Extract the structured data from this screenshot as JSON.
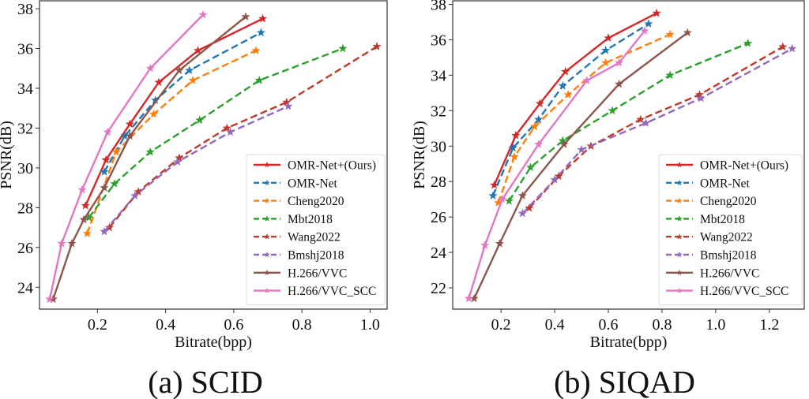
{
  "chart_data": [
    {
      "type": "line",
      "caption": "(a) SCID",
      "xlabel": "Bitrate(bpp)",
      "ylabel": "PSNR(dB)",
      "xlim": [
        0.03,
        1.05
      ],
      "ylim": [
        22.9,
        38.4
      ],
      "xticks": [
        0.2,
        0.4,
        0.6,
        0.8,
        1.0
      ],
      "xtick_labels": [
        "0.2",
        "0.4",
        "0.6",
        "0.8",
        "1.0"
      ],
      "yticks": [
        24,
        26,
        28,
        30,
        32,
        34,
        36,
        38
      ],
      "ytick_labels": [
        "24",
        "26",
        "28",
        "30",
        "32",
        "34",
        "36",
        "38"
      ],
      "grid": false,
      "legend_position": "lower-right",
      "series": [
        {
          "name": "OMR-Net+(Ours)",
          "color": "#d62728",
          "dashed": false,
          "x": [
            0.165,
            0.225,
            0.295,
            0.38,
            0.495,
            0.685
          ],
          "y": [
            28.1,
            30.4,
            32.2,
            34.3,
            35.9,
            37.5
          ]
        },
        {
          "name": "OMR-Net",
          "color": "#1f77b4",
          "dashed": true,
          "x": [
            0.22,
            0.28,
            0.37,
            0.47,
            0.68
          ],
          "y": [
            29.8,
            31.6,
            33.4,
            34.9,
            36.8
          ]
        },
        {
          "name": "Cheng2020",
          "color": "#ff7f0e",
          "dashed": true,
          "x": [
            0.17,
            0.255,
            0.365,
            0.48,
            0.665
          ],
          "y": [
            26.7,
            30.8,
            32.7,
            34.4,
            35.9
          ]
        },
        {
          "name": "Mbt2018",
          "color": "#2ca02c",
          "dashed": true,
          "x": [
            0.175,
            0.25,
            0.355,
            0.5,
            0.675,
            0.92
          ],
          "y": [
            27.5,
            29.2,
            30.8,
            32.4,
            34.4,
            36.0
          ]
        },
        {
          "name": "Wang2022",
          "color": "#c0392b",
          "dashed": true,
          "x": [
            0.235,
            0.32,
            0.44,
            0.58,
            0.755,
            1.02
          ],
          "y": [
            27.0,
            28.8,
            30.5,
            32.0,
            33.3,
            36.1
          ]
        },
        {
          "name": "Bmshj2018",
          "color": "#9467bd",
          "dashed": true,
          "x": [
            0.22,
            0.31,
            0.435,
            0.59,
            0.76
          ],
          "y": [
            26.8,
            28.6,
            30.3,
            31.8,
            33.1
          ]
        },
        {
          "name": "H.266/VVC",
          "color": "#8c564b",
          "dashed": false,
          "x": [
            0.07,
            0.125,
            0.16,
            0.22,
            0.295,
            0.44,
            0.635
          ],
          "y": [
            23.4,
            26.2,
            27.4,
            29.0,
            31.6,
            34.9,
            37.6
          ]
        },
        {
          "name": "H.266/VVC_SCC",
          "color": "#e377c2",
          "dashed": false,
          "x": [
            0.06,
            0.095,
            0.155,
            0.23,
            0.355,
            0.51
          ],
          "y": [
            23.4,
            26.2,
            28.9,
            31.8,
            35.0,
            37.7
          ]
        }
      ]
    },
    {
      "type": "line",
      "caption": "(b) SIQAD",
      "xlabel": "Bitrate(bpp)",
      "ylabel": "PSNR(dB)",
      "xlim": [
        0.02,
        1.33
      ],
      "ylim": [
        20.8,
        38.2
      ],
      "xticks": [
        0.2,
        0.4,
        0.6,
        0.8,
        1.0,
        1.2
      ],
      "xtick_labels": [
        "0.2",
        "0.4",
        "0.6",
        "0.8",
        "1.0",
        "1.2"
      ],
      "yticks": [
        22,
        24,
        26,
        28,
        30,
        32,
        34,
        36,
        38
      ],
      "ytick_labels": [
        "22",
        "24",
        "26",
        "28",
        "30",
        "32",
        "34",
        "36",
        "38"
      ],
      "grid": false,
      "legend_position": "lower-right",
      "series": [
        {
          "name": "OMR-Net+(Ours)",
          "color": "#d62728",
          "dashed": false,
          "x": [
            0.175,
            0.255,
            0.345,
            0.44,
            0.6,
            0.78
          ],
          "y": [
            27.8,
            30.6,
            32.4,
            34.2,
            36.1,
            37.5
          ]
        },
        {
          "name": "OMR-Net",
          "color": "#1f77b4",
          "dashed": true,
          "x": [
            0.17,
            0.245,
            0.34,
            0.43,
            0.59,
            0.75
          ],
          "y": [
            27.2,
            29.9,
            31.5,
            33.4,
            35.4,
            36.9
          ]
        },
        {
          "name": "Cheng2020",
          "color": "#ff7f0e",
          "dashed": true,
          "x": [
            0.19,
            0.25,
            0.325,
            0.45,
            0.59,
            0.83
          ],
          "y": [
            26.8,
            29.4,
            31.1,
            32.9,
            34.7,
            36.3
          ]
        },
        {
          "name": "Mbt2018",
          "color": "#2ca02c",
          "dashed": true,
          "x": [
            0.23,
            0.31,
            0.43,
            0.615,
            0.83,
            1.12
          ],
          "y": [
            26.9,
            28.8,
            30.3,
            32.0,
            34.0,
            35.8
          ]
        },
        {
          "name": "Wang2022",
          "color": "#c0392b",
          "dashed": true,
          "x": [
            0.305,
            0.415,
            0.535,
            0.72,
            0.94,
            1.25
          ],
          "y": [
            26.5,
            28.3,
            30.0,
            31.5,
            32.9,
            35.6
          ]
        },
        {
          "name": "Bmshj2018",
          "color": "#9467bd",
          "dashed": true,
          "x": [
            0.28,
            0.4,
            0.5,
            0.74,
            0.945,
            1.285
          ],
          "y": [
            26.2,
            28.1,
            29.8,
            31.3,
            32.7,
            35.5
          ]
        },
        {
          "name": "H.266/VVC",
          "color": "#8c564b",
          "dashed": false,
          "x": [
            0.1,
            0.195,
            0.28,
            0.435,
            0.64,
            0.895
          ],
          "y": [
            21.4,
            24.5,
            27.2,
            30.1,
            33.5,
            36.4
          ]
        },
        {
          "name": "H.266/VVC_SCC",
          "color": "#e377c2",
          "dashed": false,
          "x": [
            0.08,
            0.14,
            0.205,
            0.34,
            0.52,
            0.64,
            0.735
          ],
          "y": [
            21.4,
            24.4,
            27.0,
            30.1,
            33.7,
            34.7,
            36.5
          ]
        }
      ]
    }
  ]
}
